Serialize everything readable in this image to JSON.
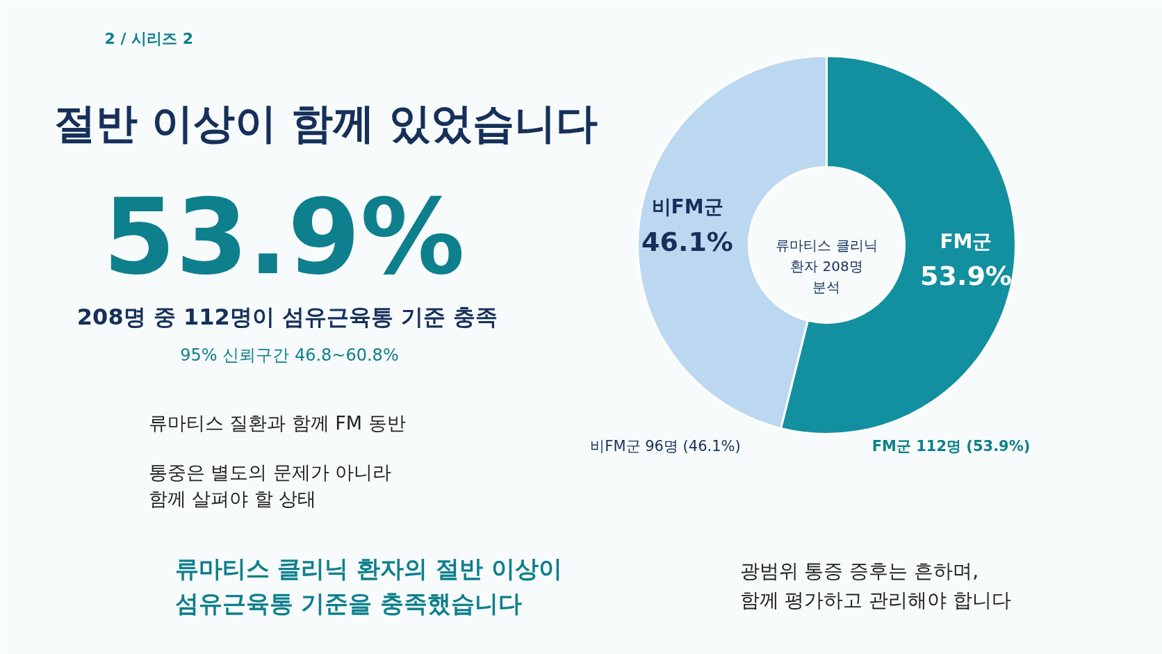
{
  "chart_data": {
    "type": "donut",
    "title": "절반 이상이 함께 있었습니다",
    "categories": [
      "FM군",
      "비FM군"
    ],
    "values": [
      53.9,
      46.1
    ],
    "colors": [
      "#12909f",
      "#bcd8f0"
    ],
    "value_labels": [
      "53.9%",
      "46.1%"
    ],
    "annotations": [
      "2 / 시리즈 2",
      "53.9%",
      "208명 중 112명이 섬유근육통 기준 충족",
      "95% 신뢰구간 46.8~60.8%",
      "류마티스 질환과 함께 FM 동반",
      "통중은 별도의 문제가 아니라\n함께 살펴야 할 상태",
      "비FM군 96명 (46.1%)",
      "FM군 112명 (53.9%)",
      "류마티스 클리닉 환자의 절반 이상이\n섬유근육통 기준을 충족했습니다",
      "광범위 통증 증후는 흔하며,\n함께 평가하고 관리해야 합니다",
      "류마티스 클리닉\n환자 208명\n분석"
    ]
  }
}
